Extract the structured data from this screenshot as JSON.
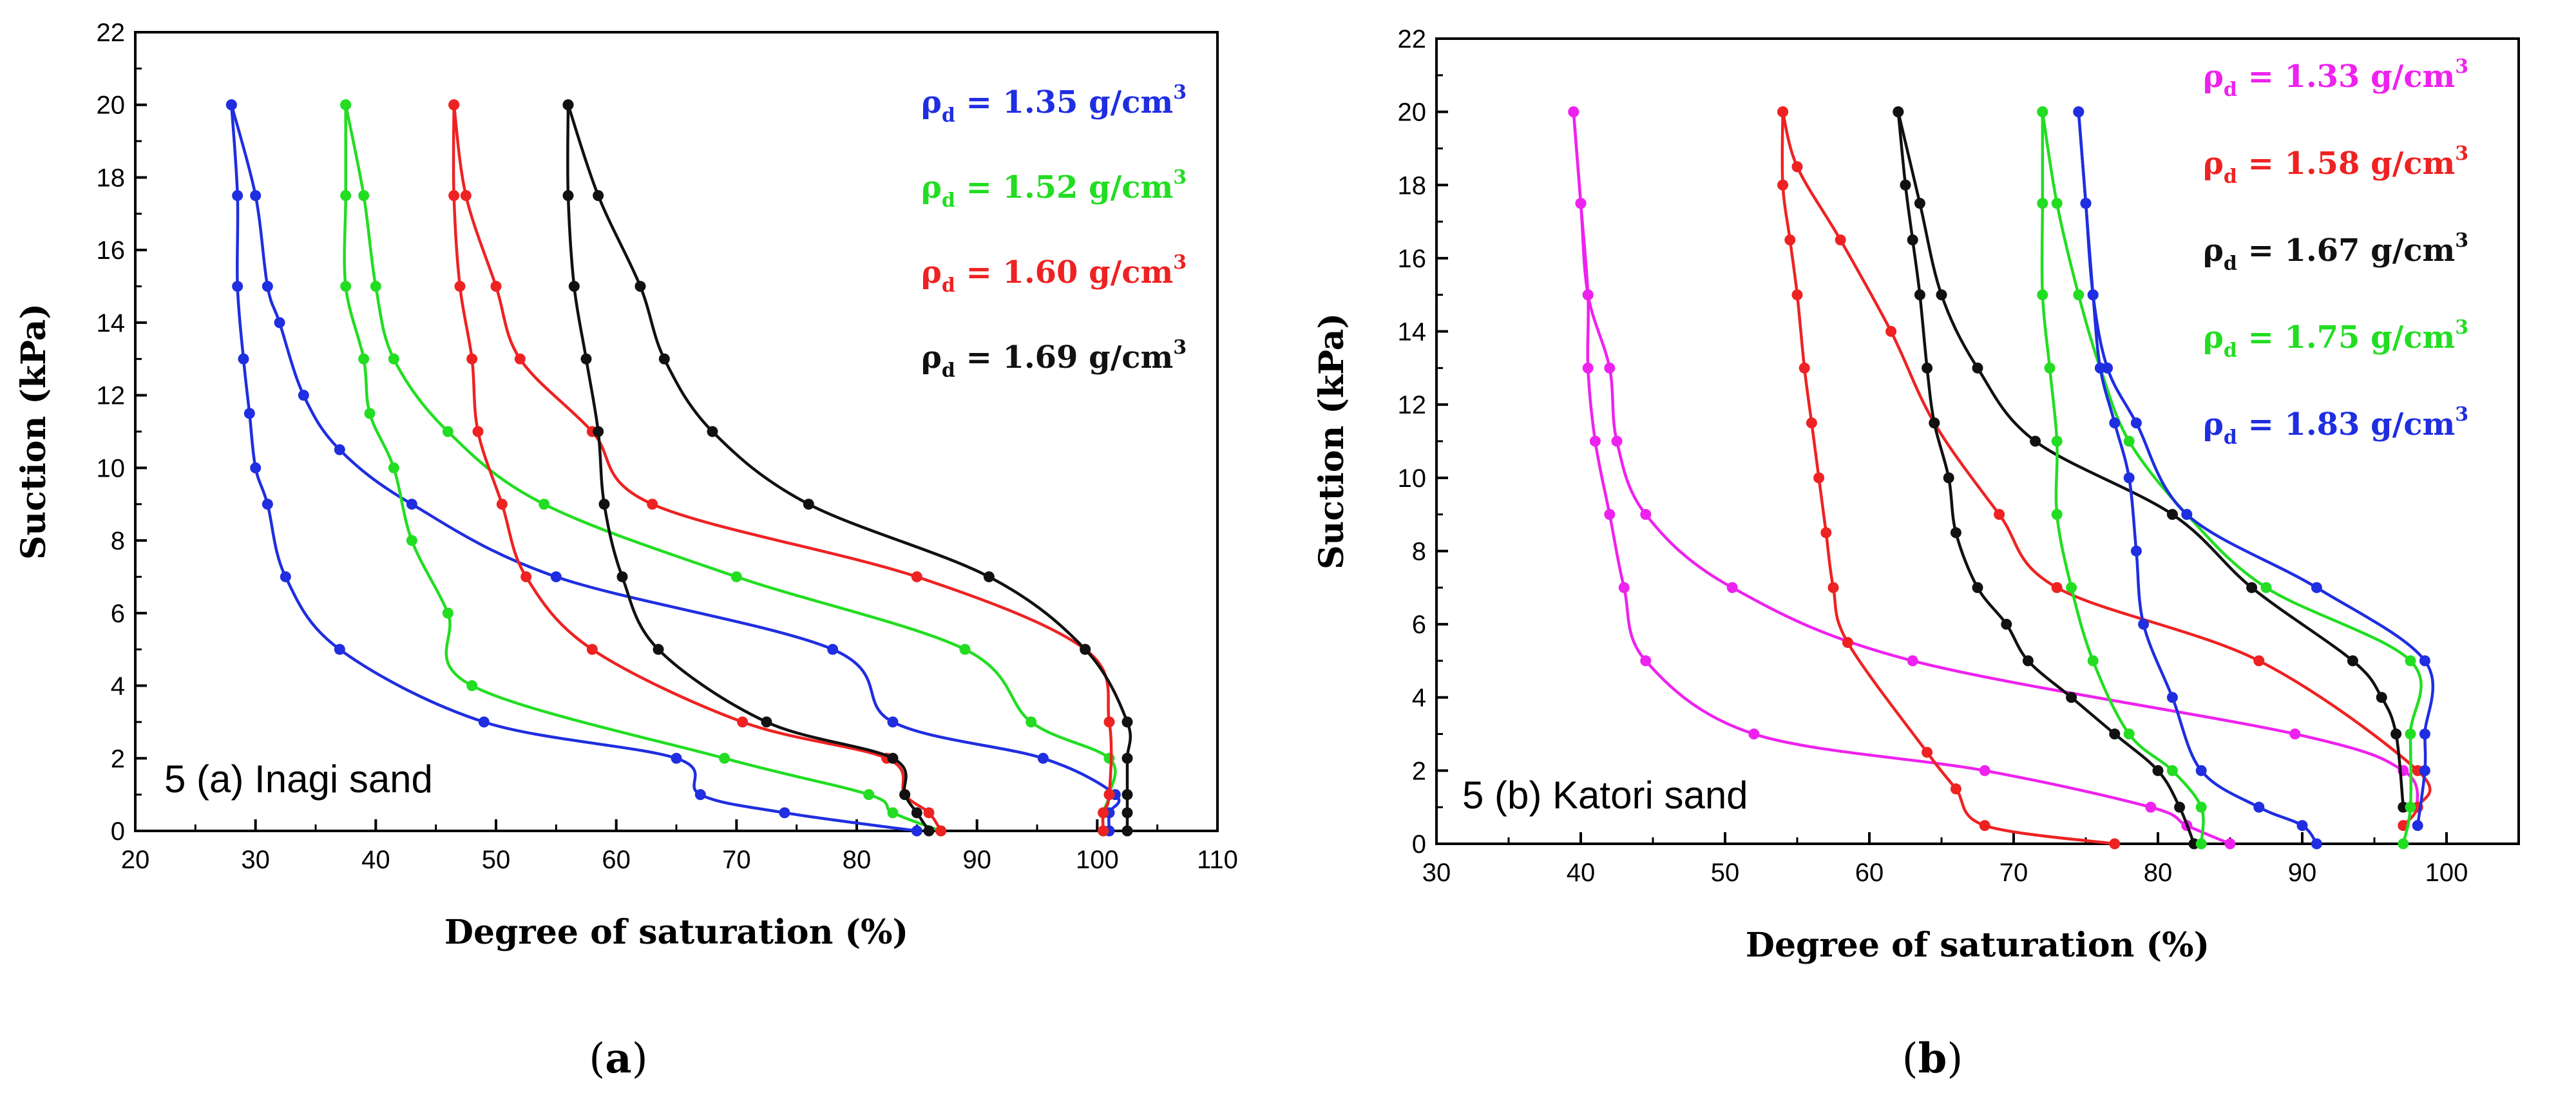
{
  "chart_data": [
    {
      "type": "line",
      "panel_label": "5 (a) Inagi sand",
      "caption": "a",
      "xlabel": "Degree of saturation (%)",
      "ylabel": "Suction (kPa)",
      "xlim": [
        20,
        110
      ],
      "ylim": [
        0,
        22
      ],
      "xticks": [
        20,
        30,
        40,
        50,
        60,
        70,
        80,
        90,
        100,
        110
      ],
      "yticks": [
        0,
        2,
        4,
        6,
        8,
        10,
        12,
        14,
        16,
        18,
        20,
        22
      ],
      "legend_position": "top-right",
      "series": [
        {
          "name": "ρd = 1.35 g/cm3",
          "label_main": "ρ",
          "label_sub": "d",
          "label_rest": " = 1.35 g/cm",
          "label_sup": "3",
          "color": "#1f2ee0",
          "points_drying": [
            [
              101,
              0
            ],
            [
              101,
              0.5
            ],
            [
              101.5,
              1
            ],
            [
              95.5,
              2
            ],
            [
              83,
              3
            ],
            [
              78,
              5
            ],
            [
              55,
              7
            ],
            [
              43,
              9
            ],
            [
              37,
              10.5
            ],
            [
              34,
              12
            ],
            [
              32,
              14
            ],
            [
              31,
              15
            ],
            [
              30,
              17.5
            ],
            [
              28,
              20
            ]
          ],
          "points_wetting": [
            [
              28,
              20
            ],
            [
              28.5,
              17.5
            ],
            [
              28.5,
              15
            ],
            [
              29,
              13
            ],
            [
              29.5,
              11.5
            ],
            [
              30,
              10
            ],
            [
              31,
              9
            ],
            [
              32.5,
              7
            ],
            [
              37,
              5
            ],
            [
              49,
              3
            ],
            [
              65,
              2
            ],
            [
              67,
              1
            ],
            [
              74,
              0.5
            ],
            [
              85,
              0
            ]
          ]
        },
        {
          "name": "ρd = 1.52 g/cm3",
          "label_main": "ρ",
          "label_sub": "d",
          "label_rest": " = 1.52 g/cm",
          "label_sup": "3",
          "color": "#22dd22",
          "points_drying": [
            [
              100.5,
              0
            ],
            [
              100.5,
              0.5
            ],
            [
              101,
              1
            ],
            [
              101,
              2
            ],
            [
              94.5,
              3
            ],
            [
              89,
              5
            ],
            [
              70,
              7
            ],
            [
              54,
              9
            ],
            [
              46,
              11
            ],
            [
              41.5,
              13
            ],
            [
              40,
              15
            ],
            [
              39,
              17.5
            ],
            [
              37.5,
              20
            ]
          ],
          "points_wetting": [
            [
              37.5,
              20
            ],
            [
              37.5,
              17.5
            ],
            [
              37.5,
              15
            ],
            [
              39,
              13
            ],
            [
              39.5,
              11.5
            ],
            [
              41.5,
              10
            ],
            [
              43,
              8
            ],
            [
              46,
              6
            ],
            [
              48,
              4
            ],
            [
              69,
              2
            ],
            [
              81,
              1
            ],
            [
              83,
              0.5
            ],
            [
              87,
              0
            ]
          ]
        },
        {
          "name": "ρd = 1.60 g/cm3",
          "label_main": "ρ",
          "label_sub": "d",
          "label_rest": " = 1.60 g/cm",
          "label_sup": "3",
          "color": "#ee2222",
          "points_drying": [
            [
              100.5,
              0
            ],
            [
              100.5,
              0.5
            ],
            [
              101,
              1
            ],
            [
              101,
              3
            ],
            [
              99,
              5
            ],
            [
              85,
              7
            ],
            [
              63,
              9
            ],
            [
              58,
              11
            ],
            [
              52,
              13
            ],
            [
              50,
              15
            ],
            [
              47.5,
              17.5
            ],
            [
              46.5,
              20
            ]
          ],
          "points_wetting": [
            [
              46.5,
              20
            ],
            [
              46.5,
              17.5
            ],
            [
              47,
              15
            ],
            [
              48,
              13
            ],
            [
              48.5,
              11
            ],
            [
              50.5,
              9
            ],
            [
              52.5,
              7
            ],
            [
              58,
              5
            ],
            [
              70.5,
              3
            ],
            [
              82.5,
              2
            ],
            [
              84,
              1
            ],
            [
              86,
              0.5
            ],
            [
              87,
              0
            ]
          ]
        },
        {
          "name": "ρd = 1.69 g/cm3",
          "label_main": "ρ",
          "label_sub": "d",
          "label_rest": " = 1.69 g/cm",
          "label_sup": "3",
          "color": "#111111",
          "points_drying": [
            [
              102.5,
              0
            ],
            [
              102.5,
              0.5
            ],
            [
              102.5,
              1
            ],
            [
              102.5,
              2
            ],
            [
              102.5,
              3
            ],
            [
              99,
              5
            ],
            [
              91,
              7
            ],
            [
              76,
              9
            ],
            [
              68,
              11
            ],
            [
              64,
              13
            ],
            [
              62,
              15
            ],
            [
              58.5,
              17.5
            ],
            [
              56,
              20
            ]
          ],
          "points_wetting": [
            [
              56,
              20
            ],
            [
              56,
              17.5
            ],
            [
              56.5,
              15
            ],
            [
              57.5,
              13
            ],
            [
              58.5,
              11
            ],
            [
              59,
              9
            ],
            [
              60.5,
              7
            ],
            [
              63.5,
              5
            ],
            [
              72.5,
              3
            ],
            [
              83,
              2
            ],
            [
              84,
              1
            ],
            [
              85,
              0.5
            ],
            [
              86,
              0
            ]
          ]
        }
      ]
    },
    {
      "type": "line",
      "panel_label": "5 (b) Katori sand",
      "caption": "b",
      "xlabel": "Degree of saturation (%)",
      "ylabel": "Suction (kPa)",
      "xlim": [
        30,
        105
      ],
      "ylim": [
        0,
        22
      ],
      "xticks": [
        30,
        40,
        50,
        60,
        70,
        80,
        90,
        100
      ],
      "yticks": [
        0,
        2,
        4,
        6,
        8,
        10,
        12,
        14,
        16,
        18,
        20,
        22
      ],
      "legend_position": "top-right",
      "series": [
        {
          "name": "ρd = 1.33 g/cm3",
          "label_main": "ρ",
          "label_sub": "d",
          "label_rest": " = 1.33 g/cm",
          "label_sup": "3",
          "color": "#ee22ee",
          "points_drying": [
            [
              98,
              1
            ],
            [
              97,
              2
            ],
            [
              89.5,
              3
            ],
            [
              63,
              5
            ],
            [
              50.5,
              7
            ],
            [
              44.5,
              9
            ],
            [
              42.5,
              11
            ],
            [
              42,
              13
            ],
            [
              40.5,
              15
            ],
            [
              40,
              17.5
            ],
            [
              39.5,
              20
            ]
          ],
          "points_wetting": [
            [
              39.5,
              20
            ],
            [
              40,
              17.5
            ],
            [
              40.5,
              15
            ],
            [
              40.5,
              13
            ],
            [
              41,
              11
            ],
            [
              42,
              9
            ],
            [
              43,
              7
            ],
            [
              44.5,
              5
            ],
            [
              52,
              3
            ],
            [
              68,
              2
            ],
            [
              79.5,
              1
            ],
            [
              82,
              0.5
            ],
            [
              85,
              0
            ]
          ]
        },
        {
          "name": "ρd = 1.58 g/cm3",
          "label_main": "ρ",
          "label_sub": "d",
          "label_rest": " = 1.58 g/cm",
          "label_sup": "3",
          "color": "#ee2222",
          "points_drying": [
            [
              97,
              0.5
            ],
            [
              98,
              1
            ],
            [
              98,
              2
            ],
            [
              87,
              5
            ],
            [
              73,
              7
            ],
            [
              69,
              9
            ],
            [
              64.5,
              11.5
            ],
            [
              61.5,
              14
            ],
            [
              58,
              16.5
            ],
            [
              55,
              18.5
            ],
            [
              54,
              20
            ]
          ],
          "points_wetting": [
            [
              54,
              20
            ],
            [
              54,
              18
            ],
            [
              54.5,
              16.5
            ],
            [
              55,
              15
            ],
            [
              55.5,
              13
            ],
            [
              56,
              11.5
            ],
            [
              56.5,
              10
            ],
            [
              57,
              8.5
            ],
            [
              57.5,
              7
            ],
            [
              58.5,
              5.5
            ],
            [
              64,
              2.5
            ],
            [
              66,
              1.5
            ],
            [
              68,
              0.5
            ],
            [
              77,
              0
            ]
          ]
        },
        {
          "name": "ρd = 1.67 g/cm3",
          "label_main": "ρ",
          "label_sub": "d",
          "label_rest": " = 1.67 g/cm",
          "label_sup": "3",
          "color": "#111111",
          "points_drying": [
            [
              97,
              1
            ],
            [
              96.5,
              3
            ],
            [
              95.5,
              4
            ],
            [
              93.5,
              5
            ],
            [
              86.5,
              7
            ],
            [
              81,
              9
            ],
            [
              71.5,
              11
            ],
            [
              67.5,
              13
            ],
            [
              65,
              15
            ],
            [
              63.5,
              17.5
            ],
            [
              62,
              20
            ]
          ],
          "points_wetting": [
            [
              62,
              20
            ],
            [
              62.5,
              18
            ],
            [
              63,
              16.5
            ],
            [
              63.5,
              15
            ],
            [
              64,
              13
            ],
            [
              64.5,
              11.5
            ],
            [
              65.5,
              10
            ],
            [
              66,
              8.5
            ],
            [
              67.5,
              7
            ],
            [
              69.5,
              6
            ],
            [
              71,
              5
            ],
            [
              74,
              4
            ],
            [
              77,
              3
            ],
            [
              80,
              2
            ],
            [
              81.5,
              1
            ],
            [
              82.5,
              0
            ]
          ]
        },
        {
          "name": "ρd = 1.75 g/cm3",
          "label_main": "ρ",
          "label_sub": "d",
          "label_rest": " = 1.75 g/cm",
          "label_sup": "3",
          "color": "#22dd22",
          "points_drying": [
            [
              97,
              0
            ],
            [
              97.5,
              1
            ],
            [
              97.5,
              3
            ],
            [
              97.5,
              5
            ],
            [
              87.5,
              7
            ],
            [
              82,
              9
            ],
            [
              78,
              11
            ],
            [
              76,
              13
            ],
            [
              74.5,
              15
            ],
            [
              73,
              17.5
            ],
            [
              72,
              20
            ]
          ],
          "points_wetting": [
            [
              72,
              20
            ],
            [
              72,
              17.5
            ],
            [
              72,
              15
            ],
            [
              72.5,
              13
            ],
            [
              73,
              11
            ],
            [
              73,
              9
            ],
            [
              74,
              7
            ],
            [
              75.5,
              5
            ],
            [
              78,
              3
            ],
            [
              81,
              2
            ],
            [
              83,
              1
            ],
            [
              83,
              0
            ]
          ]
        },
        {
          "name": "ρd = 1.83 g/cm3",
          "label_main": "ρ",
          "label_sub": "d",
          "label_rest": " = 1.83 g/cm",
          "label_sup": "3",
          "color": "#1f2ee0",
          "points_drying": [
            [
              98,
              0.5
            ],
            [
              98.5,
              2
            ],
            [
              98.5,
              3
            ],
            [
              98.5,
              5
            ],
            [
              91,
              7
            ],
            [
              82,
              9
            ],
            [
              78.5,
              11.5
            ],
            [
              76.5,
              13
            ],
            [
              75.5,
              15
            ],
            [
              75,
              17.5
            ],
            [
              74.5,
              20
            ]
          ],
          "points_wetting": [
            [
              74.5,
              20
            ],
            [
              75,
              17.5
            ],
            [
              75.5,
              15
            ],
            [
              76,
              13
            ],
            [
              77,
              11.5
            ],
            [
              78,
              10
            ],
            [
              78.5,
              8
            ],
            [
              79,
              6
            ],
            [
              81,
              4
            ],
            [
              83,
              2
            ],
            [
              87,
              1
            ],
            [
              90,
              0.5
            ],
            [
              91,
              0
            ]
          ]
        }
      ]
    }
  ]
}
